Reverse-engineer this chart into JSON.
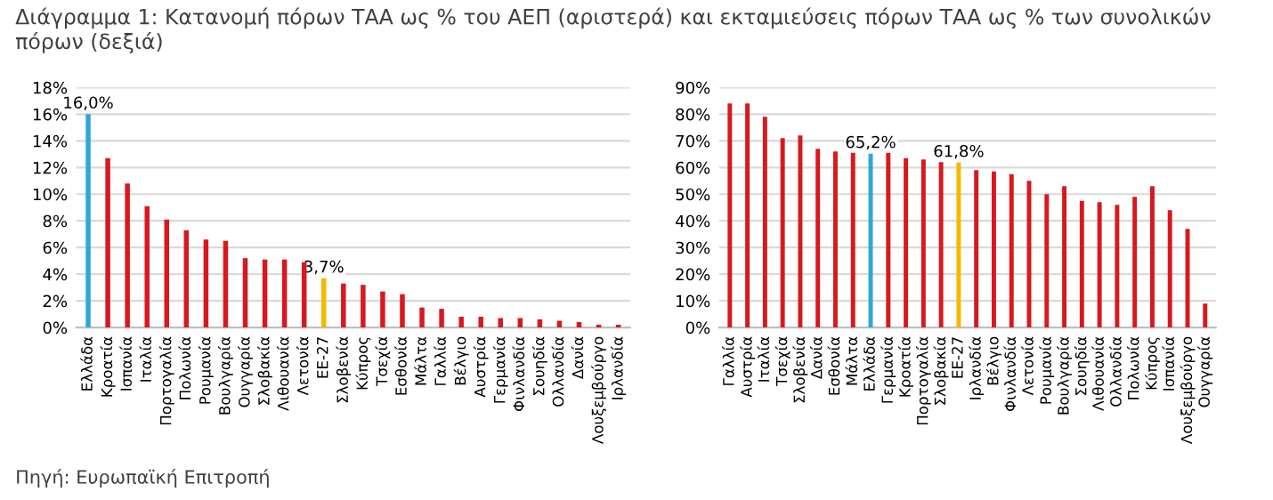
{
  "chart_data": [
    {
      "type": "bar",
      "title": "Διάγραμμα 1: Κατανομή πόρων ΤΑΑ ως % του ΑΕΠ (αριστερά) και εκταμιεύσεις πόρων ΤΑΑ ως % των συνολικών πόρων (δεξιά)",
      "annotations": [
        "Πηγή: Ευρωπαϊκή Επιτροπή"
      ],
      "categories": [
        "Ελλάδα",
        "Κροατία",
        "Ισπανία",
        "Ιταλία",
        "Πορτογαλία",
        "Πολωνία",
        "Ρουμανία",
        "Βουλγαρία",
        "Ουγγαρία",
        "Σλοβακία",
        "Λιθουανία",
        "Λετονία",
        "ΕΕ-27",
        "Σλοβενία",
        "Κύπρος",
        "Τσεχία",
        "Εσθονία",
        "Μάλτα",
        "Γαλλία",
        "Βέλγιο",
        "Αυστρία",
        "Γερμανία",
        "Φινλανδία",
        "Σουηδία",
        "Ολλανδία",
        "Δανία",
        "Λουξεμβούργο",
        "Ιρλανδία"
      ],
      "values": [
        16.0,
        12.7,
        10.8,
        9.1,
        8.1,
        7.3,
        6.6,
        6.5,
        5.2,
        5.1,
        5.1,
        4.9,
        3.7,
        3.3,
        3.2,
        2.7,
        2.5,
        1.5,
        1.4,
        0.8,
        0.8,
        0.7,
        0.7,
        0.6,
        0.5,
        0.4,
        0.2,
        0.2
      ],
      "colors": [
        "#2fa8d8",
        "#d7191f",
        "#d7191f",
        "#d7191f",
        "#d7191f",
        "#d7191f",
        "#d7191f",
        "#d7191f",
        "#d7191f",
        "#d7191f",
        "#d7191f",
        "#d7191f",
        "#f5b800",
        "#d7191f",
        "#d7191f",
        "#d7191f",
        "#d7191f",
        "#d7191f",
        "#d7191f",
        "#d7191f",
        "#d7191f",
        "#d7191f",
        "#d7191f",
        "#d7191f",
        "#d7191f",
        "#d7191f",
        "#d7191f",
        "#d7191f"
      ],
      "value_labels": [
        "16,0%",
        null,
        null,
        null,
        null,
        null,
        null,
        null,
        null,
        null,
        null,
        null,
        "3,7%",
        null,
        null,
        null,
        null,
        null,
        null,
        null,
        null,
        null,
        null,
        null,
        null,
        null,
        null,
        null
      ],
      "ylim": [
        0,
        18
      ],
      "yticks": [
        {
          "value": 0,
          "label": "0%"
        },
        {
          "value": 2,
          "label": "2%"
        },
        {
          "value": 4,
          "label": "4%"
        },
        {
          "value": 6,
          "label": "6%"
        },
        {
          "value": 8,
          "label": "8%"
        },
        {
          "value": 10,
          "label": "10%"
        },
        {
          "value": 12,
          "label": "12%"
        },
        {
          "value": 14,
          "label": "14%"
        },
        {
          "value": 16,
          "label": "16%"
        },
        {
          "value": 18,
          "label": "18%"
        }
      ],
      "grid": "y"
    },
    {
      "type": "bar",
      "categories": [
        "Γαλλία",
        "Αυστρία",
        "Ιταλία",
        "Τσεχία",
        "Σλοβενία",
        "Δανία",
        "Εσθονία",
        "Μάλτα",
        "Ελλάδα",
        "Γερμανία",
        "Κροατία",
        "Πορτογαλία",
        "Σλοβακία",
        "ΕΕ-27",
        "Ιρλανδία",
        "Βέλγιο",
        "Φινλανδία",
        "Λετονία",
        "Ρουμανία",
        "Βουλγαρία",
        "Σουηδία",
        "Λιθουανία",
        "Ολλανδία",
        "Πολωνία",
        "Κύπρος",
        "Ισπανία",
        "Λουξεμβούργο",
        "Ουγγαρία"
      ],
      "values": [
        84,
        84,
        79,
        71,
        72,
        67,
        66,
        65.5,
        65.2,
        65.5,
        63.5,
        63,
        62,
        61.8,
        59,
        58.5,
        57.5,
        55,
        50,
        53,
        47.5,
        47,
        46,
        49,
        53,
        44,
        37,
        9
      ],
      "colors": [
        "#d7191f",
        "#d7191f",
        "#d7191f",
        "#d7191f",
        "#d7191f",
        "#d7191f",
        "#d7191f",
        "#d7191f",
        "#2fa8d8",
        "#d7191f",
        "#d7191f",
        "#d7191f",
        "#d7191f",
        "#f5b800",
        "#d7191f",
        "#d7191f",
        "#d7191f",
        "#d7191f",
        "#d7191f",
        "#d7191f",
        "#d7191f",
        "#d7191f",
        "#d7191f",
        "#d7191f",
        "#d7191f",
        "#d7191f",
        "#d7191f",
        "#d7191f"
      ],
      "value_labels": [
        null,
        null,
        null,
        null,
        null,
        null,
        null,
        null,
        "65,2%",
        null,
        null,
        null,
        null,
        "61,8%",
        null,
        null,
        null,
        null,
        null,
        null,
        null,
        null,
        null,
        null,
        null,
        null,
        null,
        null
      ],
      "ylim": [
        0,
        90
      ],
      "yticks": [
        {
          "value": 0,
          "label": "0%"
        },
        {
          "value": 10,
          "label": "10%"
        },
        {
          "value": 20,
          "label": "20%"
        },
        {
          "value": 30,
          "label": "30%"
        },
        {
          "value": 40,
          "label": "40%"
        },
        {
          "value": 50,
          "label": "50%"
        },
        {
          "value": 60,
          "label": "60%"
        },
        {
          "value": 70,
          "label": "70%"
        },
        {
          "value": 80,
          "label": "80%"
        },
        {
          "value": 90,
          "label": "90%"
        }
      ],
      "grid": "y"
    }
  ]
}
